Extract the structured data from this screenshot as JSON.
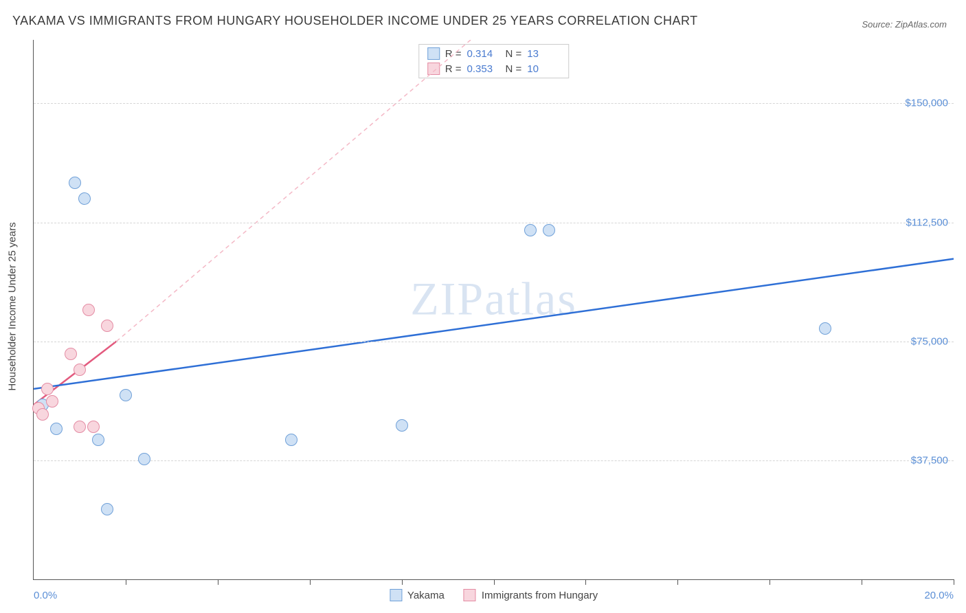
{
  "title": "YAKAMA VS IMMIGRANTS FROM HUNGARY HOUSEHOLDER INCOME UNDER 25 YEARS CORRELATION CHART",
  "source": "Source: ZipAtlas.com",
  "watermark": "ZIPatlas",
  "yaxis_label": "Householder Income Under 25 years",
  "chart": {
    "type": "scatter",
    "xlim": [
      0,
      20
    ],
    "ylim": [
      0,
      170000
    ],
    "x_ticks": [
      2,
      4,
      6,
      8,
      10,
      12,
      14,
      16,
      18,
      20
    ],
    "x_min_label": "0.0%",
    "x_max_label": "20.0%",
    "y_gridlines": [
      {
        "value": 37500,
        "label": "$37,500"
      },
      {
        "value": 75000,
        "label": "$75,000"
      },
      {
        "value": 112500,
        "label": "$112,500"
      },
      {
        "value": 150000,
        "label": "$150,000"
      }
    ],
    "background_color": "#ffffff",
    "grid_color": "#d5d5d5",
    "point_radius": 9,
    "series": [
      {
        "name": "Yakama",
        "fill": "#cfe1f5",
        "stroke": "#6fa0d8",
        "r_value": "0.314",
        "n_value": "13",
        "trend": {
          "x1": 0,
          "y1": 60000,
          "x2": 20,
          "y2": 101000,
          "color": "#2e6fd6",
          "width": 2.5,
          "dash": "none"
        },
        "points": [
          {
            "x": 0.2,
            "y": 55000
          },
          {
            "x": 0.5,
            "y": 47500
          },
          {
            "x": 0.9,
            "y": 125000
          },
          {
            "x": 1.1,
            "y": 120000
          },
          {
            "x": 1.4,
            "y": 44000
          },
          {
            "x": 1.6,
            "y": 22000
          },
          {
            "x": 2.0,
            "y": 58000
          },
          {
            "x": 2.4,
            "y": 38000
          },
          {
            "x": 5.6,
            "y": 44000
          },
          {
            "x": 8.0,
            "y": 48500
          },
          {
            "x": 10.8,
            "y": 110000
          },
          {
            "x": 11.2,
            "y": 110000
          },
          {
            "x": 17.2,
            "y": 79000
          }
        ]
      },
      {
        "name": "Immigrants from Hungary",
        "fill": "#f8d6de",
        "stroke": "#e48ba3",
        "r_value": "0.353",
        "n_value": "10",
        "trend_solid": {
          "x1": 0,
          "y1": 55000,
          "x2": 1.8,
          "y2": 75000,
          "color": "#e35a7e",
          "width": 2.5
        },
        "trend_dashed": {
          "x1": 1.8,
          "y1": 75000,
          "x2": 9.5,
          "y2": 170000,
          "color": "#f4b8c6",
          "width": 1.5
        },
        "points": [
          {
            "x": 0.1,
            "y": 54000
          },
          {
            "x": 0.2,
            "y": 52000
          },
          {
            "x": 0.3,
            "y": 60000
          },
          {
            "x": 0.4,
            "y": 56000
          },
          {
            "x": 0.8,
            "y": 71000
          },
          {
            "x": 1.0,
            "y": 66000
          },
          {
            "x": 1.0,
            "y": 48000
          },
          {
            "x": 1.3,
            "y": 48000
          },
          {
            "x": 1.2,
            "y": 85000
          },
          {
            "x": 1.6,
            "y": 80000
          }
        ]
      }
    ]
  },
  "stats_legend_labels": {
    "r": "R  =",
    "n": "N  ="
  },
  "bottom_legend": [
    "Yakama",
    "Immigrants from Hungary"
  ]
}
